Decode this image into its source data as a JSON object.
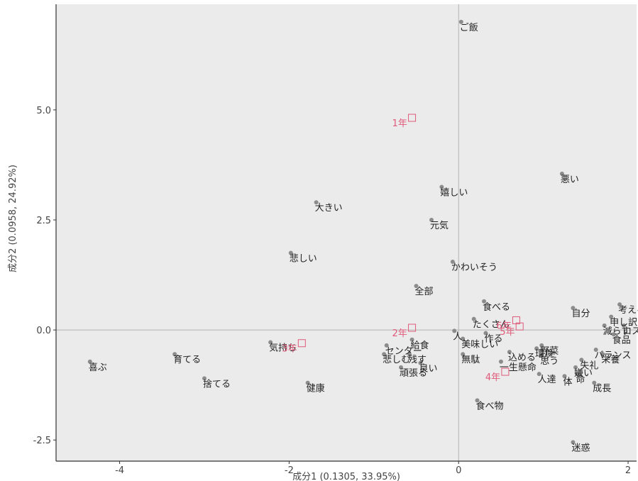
{
  "chart_data": {
    "type": "scatter",
    "title": "",
    "xlabel": "成分1 (0.1305, 33.95%)",
    "ylabel": "成分2 (0.0958, 24.92%)",
    "xlim": [
      -4.75,
      2.1
    ],
    "ylim": [
      -2.98,
      7.4
    ],
    "x_ticks": [
      -4,
      -2,
      0,
      2
    ],
    "y_ticks": [
      -2.5,
      0.0,
      2.5,
      5.0
    ],
    "x_tick_labels": [
      "-4",
      "-2",
      "0",
      "2"
    ],
    "y_tick_labels": [
      "-2.5",
      "0.0",
      "2.5",
      "5.0"
    ],
    "reference_lines": {
      "x": 0,
      "y": 0
    },
    "grid": false,
    "background_color": "#ebebeb",
    "word_point_color": "#8c8c8c",
    "highlight_point_color": "#7ab0c0",
    "grade_color": "#e05a7a",
    "words": [
      {
        "label": "ご飯",
        "x": 0.03,
        "y": 7.0
      },
      {
        "label": "悪い",
        "x": 1.22,
        "y": 3.55
      },
      {
        "label": "嬉しい",
        "x": -0.2,
        "y": 3.25
      },
      {
        "label": "大きい",
        "x": -1.68,
        "y": 2.9
      },
      {
        "label": "元気",
        "x": -0.32,
        "y": 2.5
      },
      {
        "label": "悲しい",
        "x": -1.98,
        "y": 1.75
      },
      {
        "label": "かわいそう",
        "x": -0.07,
        "y": 1.55
      },
      {
        "label": "全部",
        "x": -0.5,
        "y": 1.0
      },
      {
        "label": "食べる",
        "x": 0.3,
        "y": 0.65
      },
      {
        "label": "自分",
        "x": 1.35,
        "y": 0.5
      },
      {
        "label": "考える",
        "x": 1.9,
        "y": 0.58
      },
      {
        "label": "申し訳",
        "x": 1.8,
        "y": 0.3
      },
      {
        "label": "減らす",
        "x": 1.72,
        "y": 0.1
      },
      {
        "label": "ロス",
        "x": 1.95,
        "y": 0.1
      },
      {
        "label": "食品",
        "x": 1.83,
        "y": -0.1
      },
      {
        "label": "たくさん",
        "x": 0.18,
        "y": 0.25
      },
      {
        "label": "人",
        "x": -0.05,
        "y": -0.02
      },
      {
        "label": "作る",
        "x": 0.32,
        "y": -0.07
      },
      {
        "label": "美味しい",
        "x": 0.05,
        "y": -0.2
      },
      {
        "label": "給食",
        "x": -0.55,
        "y": -0.22
      },
      {
        "label": "センター",
        "x": -0.85,
        "y": -0.35
      },
      {
        "label": "悲しむ",
        "x": -0.88,
        "y": -0.55
      },
      {
        "label": "残す",
        "x": -0.58,
        "y": -0.55
      },
      {
        "label": "無駄",
        "x": 0.05,
        "y": -0.55
      },
      {
        "label": "野菜",
        "x": 0.98,
        "y": -0.35
      },
      {
        "label": "環境",
        "x": 0.92,
        "y": -0.42
      },
      {
        "label": "バランス",
        "x": 1.62,
        "y": -0.45
      },
      {
        "label": "栄養",
        "x": 1.7,
        "y": -0.55
      },
      {
        "label": "込める",
        "x": 0.6,
        "y": -0.5
      },
      {
        "label": "思う",
        "x": 0.98,
        "y": -0.58
      },
      {
        "label": "失礼",
        "x": 1.45,
        "y": -0.68
      },
      {
        "label": "一生懸命",
        "x": 0.5,
        "y": -0.72
      },
      {
        "label": "嫌い",
        "x": 1.38,
        "y": -0.85
      },
      {
        "label": "頑張る",
        "x": -0.68,
        "y": -0.85
      },
      {
        "label": "良い",
        "x": -0.45,
        "y": -0.75
      },
      {
        "label": "人達",
        "x": 0.95,
        "y": -1.0
      },
      {
        "label": "体",
        "x": 1.25,
        "y": -1.05
      },
      {
        "label": "命",
        "x": 1.4,
        "y": -1.0
      },
      {
        "label": "成長",
        "x": 1.6,
        "y": -1.2
      },
      {
        "label": "食べ物",
        "x": 0.22,
        "y": -1.6
      },
      {
        "label": "喜ぶ",
        "x": -4.35,
        "y": -0.72
      },
      {
        "label": "育てる",
        "x": -3.35,
        "y": -0.55
      },
      {
        "label": "気持ち",
        "x": -2.22,
        "y": -0.28
      },
      {
        "label": "捨てる",
        "x": -3.0,
        "y": -1.1
      },
      {
        "label": "健康",
        "x": -1.78,
        "y": -1.2
      },
      {
        "label": "迷惑",
        "x": 1.35,
        "y": -2.55
      }
    ],
    "grades": [
      {
        "label": "1年",
        "x": -0.55,
        "y": 4.82
      },
      {
        "label": "2年",
        "x": -0.55,
        "y": 0.05
      },
      {
        "label": "3年",
        "x": -1.85,
        "y": -0.3
      },
      {
        "label": "4年",
        "x": 0.55,
        "y": -0.95
      },
      {
        "label": "5年",
        "x": 0.72,
        "y": 0.08
      },
      {
        "label": "6年",
        "x": 0.68,
        "y": 0.22
      }
    ]
  }
}
